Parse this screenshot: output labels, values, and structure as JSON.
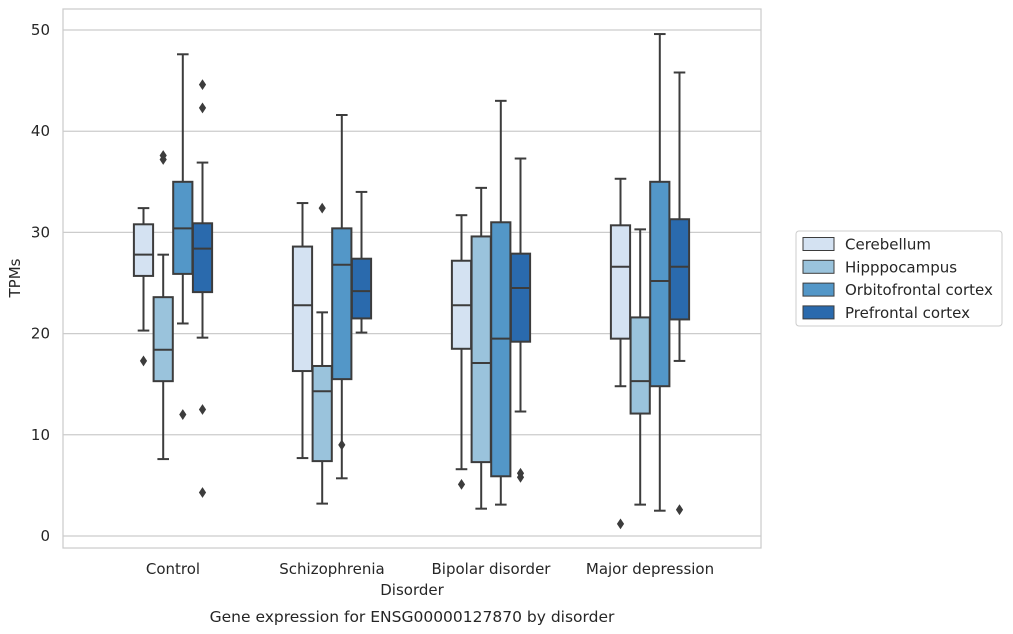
{
  "chart_data": {
    "type": "boxplot",
    "title": "",
    "caption": "Gene expression for ENSG00000127870 by disorder",
    "xlabel": "Disorder",
    "ylabel": "TPMs",
    "ylim": [
      -1.2,
      52
    ],
    "yticks": [
      0,
      10,
      20,
      30,
      40,
      50
    ],
    "grid": "horizontal",
    "legend_position": "right",
    "categories": [
      "Control",
      "Schizophrenia",
      "Bipolar disorder",
      "Major depression"
    ],
    "series": [
      {
        "name": "Cerebellum",
        "color": "#d4e2f2",
        "boxes": [
          {
            "whisker_low": 20.3,
            "q1": 25.7,
            "median": 27.8,
            "q3": 30.8,
            "whisker_high": 32.4,
            "outliers": [
              17.3
            ]
          },
          {
            "whisker_low": 7.7,
            "q1": 16.3,
            "median": 22.8,
            "q3": 28.6,
            "whisker_high": 32.9,
            "outliers": []
          },
          {
            "whisker_low": 6.6,
            "q1": 18.5,
            "median": 22.8,
            "q3": 27.2,
            "whisker_high": 31.7,
            "outliers": [
              5.1
            ]
          },
          {
            "whisker_low": 14.8,
            "q1": 19.5,
            "median": 26.6,
            "q3": 30.7,
            "whisker_high": 35.3,
            "outliers": [
              1.2
            ]
          }
        ]
      },
      {
        "name": "Hipppocampus",
        "color": "#9ac3dc",
        "boxes": [
          {
            "whisker_low": 7.6,
            "q1": 15.3,
            "median": 18.4,
            "q3": 23.6,
            "whisker_high": 27.8,
            "outliers": [
              37.2,
              37.6
            ]
          },
          {
            "whisker_low": 3.2,
            "q1": 7.4,
            "median": 14.3,
            "q3": 16.8,
            "whisker_high": 22.1,
            "outliers": [
              32.4
            ]
          },
          {
            "whisker_low": 2.7,
            "q1": 7.3,
            "median": 17.1,
            "q3": 29.6,
            "whisker_high": 34.4,
            "outliers": []
          },
          {
            "whisker_low": 3.1,
            "q1": 12.1,
            "median": 15.3,
            "q3": 21.6,
            "whisker_high": 30.3,
            "outliers": []
          }
        ]
      },
      {
        "name": "Orbitofrontal cortex",
        "color": "#5397c8",
        "boxes": [
          {
            "whisker_low": 21.0,
            "q1": 25.9,
            "median": 30.4,
            "q3": 35.0,
            "whisker_high": 47.6,
            "outliers": [
              12.0
            ]
          },
          {
            "whisker_low": 5.7,
            "q1": 15.5,
            "median": 26.8,
            "q3": 30.4,
            "whisker_high": 41.6,
            "outliers": [
              9.0
            ]
          },
          {
            "whisker_low": 3.1,
            "q1": 5.9,
            "median": 19.5,
            "q3": 31.0,
            "whisker_high": 43.0,
            "outliers": []
          },
          {
            "whisker_low": 2.5,
            "q1": 14.8,
            "median": 25.2,
            "q3": 35.0,
            "whisker_high": 49.6,
            "outliers": []
          }
        ]
      },
      {
        "name": "Prefrontal cortex",
        "color": "#2a6aad",
        "boxes": [
          {
            "whisker_low": 19.6,
            "q1": 24.1,
            "median": 28.4,
            "q3": 30.9,
            "whisker_high": 36.9,
            "outliers": [
              44.6,
              42.3,
              12.5,
              4.3
            ]
          },
          {
            "whisker_low": 20.1,
            "q1": 21.5,
            "median": 24.2,
            "q3": 27.4,
            "whisker_high": 34.0,
            "outliers": []
          },
          {
            "whisker_low": 12.3,
            "q1": 19.2,
            "median": 24.5,
            "q3": 27.9,
            "whisker_high": 37.3,
            "outliers": [
              6.2,
              5.8
            ]
          },
          {
            "whisker_low": 17.3,
            "q1": 21.4,
            "median": 26.6,
            "q3": 31.3,
            "whisker_high": 45.8,
            "outliers": [
              2.6
            ]
          }
        ]
      }
    ]
  }
}
